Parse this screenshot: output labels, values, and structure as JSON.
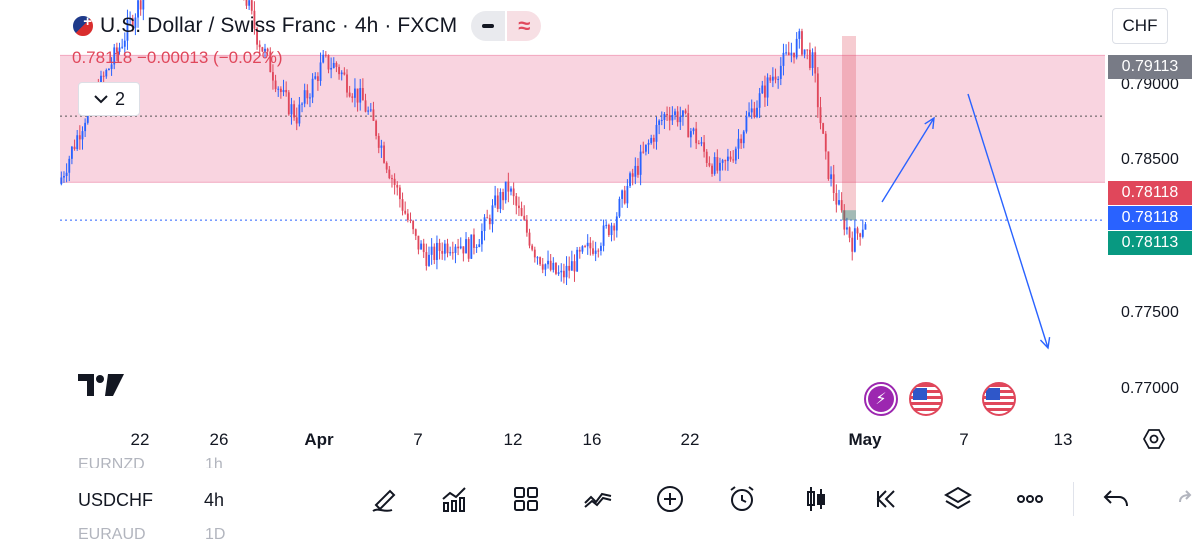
{
  "header": {
    "symbol_title": "U.S. Dollar / Swiss Franc · 4h · FXCM",
    "price": "0.78118",
    "change": "−0.00013 (−0.02%)",
    "indicator_toggle_count": "2",
    "currency": "CHF",
    "flag_icon": "usd-chf-flag-icon",
    "pill_minus_icon": "minus-icon",
    "pill_wave_icon": "approx-wave-icon",
    "pill_wave_glyph": "≈"
  },
  "price_axis": {
    "labels": [
      "0.79000",
      "0.78500",
      "0.77500",
      "0.77000"
    ],
    "tags": [
      {
        "value": "0.79113",
        "color": "#787b86"
      },
      {
        "value": "0.78118",
        "color": "#e0475b"
      },
      {
        "value": "0.78118",
        "color": "#2962ff"
      },
      {
        "value": "0.78113",
        "color": "#089981"
      }
    ]
  },
  "time_axis": {
    "labels": [
      "22",
      "26",
      "Apr",
      "7",
      "12",
      "16",
      "22",
      "May",
      "7",
      "13"
    ]
  },
  "chart_data": {
    "type": "candlestick",
    "symbol": "USDCHF",
    "interval": "4h",
    "ylim": [
      0.77,
      0.7935
    ],
    "last_price": 0.78118,
    "zone": {
      "low": 0.7833,
      "high": 0.7904,
      "color": "#f8c9d8"
    },
    "dotted_levels": [
      0.787,
      0.78118
    ],
    "colors": {
      "up": "#2962ff",
      "down": "#e0475b"
    },
    "closes": [
      0.7832,
      0.7851,
      0.787,
      0.7885,
      0.79,
      0.7915,
      0.7932,
      0.795,
      0.797,
      0.799,
      0.8,
      0.799,
      0.7975,
      0.796,
      0.794,
      0.7915,
      0.7898,
      0.788,
      0.787,
      0.7885,
      0.79,
      0.7898,
      0.7887,
      0.7878,
      0.7862,
      0.784,
      0.782,
      0.78,
      0.779,
      0.7797,
      0.78,
      0.7796,
      0.7805,
      0.782,
      0.783,
      0.7812,
      0.7795,
      0.7785,
      0.778,
      0.7788,
      0.7795,
      0.7802,
      0.7812,
      0.783,
      0.7845,
      0.786,
      0.7873,
      0.787,
      0.786,
      0.7847,
      0.7838,
      0.785,
      0.7868,
      0.788,
      0.7893,
      0.7902,
      0.7912,
      0.79,
      0.7845,
      0.7818,
      0.78,
      0.7812
    ]
  },
  "annotations": {
    "arrows": [
      "short-up-arrow",
      "long-down-arrow"
    ]
  },
  "events": [
    {
      "icon": "flash-icon"
    },
    {
      "icon": "us-flag-icon"
    },
    {
      "icon": "us-flag-icon"
    }
  ],
  "watchlist": {
    "prev": {
      "symbol": "EURNZD",
      "interval": "1h"
    },
    "current": {
      "symbol": "USDCHF",
      "interval": "4h"
    },
    "next": {
      "symbol": "EURAUD",
      "interval": "1D"
    }
  },
  "toolbar": [
    "drawing-pen-icon",
    "indicators-chart-icon",
    "layout-grid-icon",
    "trend-lines-icon",
    "add-plus-icon",
    "alert-clock-icon",
    "candles-type-icon",
    "replay-rewind-icon",
    "layers-icon",
    "more-dots-icon"
  ]
}
